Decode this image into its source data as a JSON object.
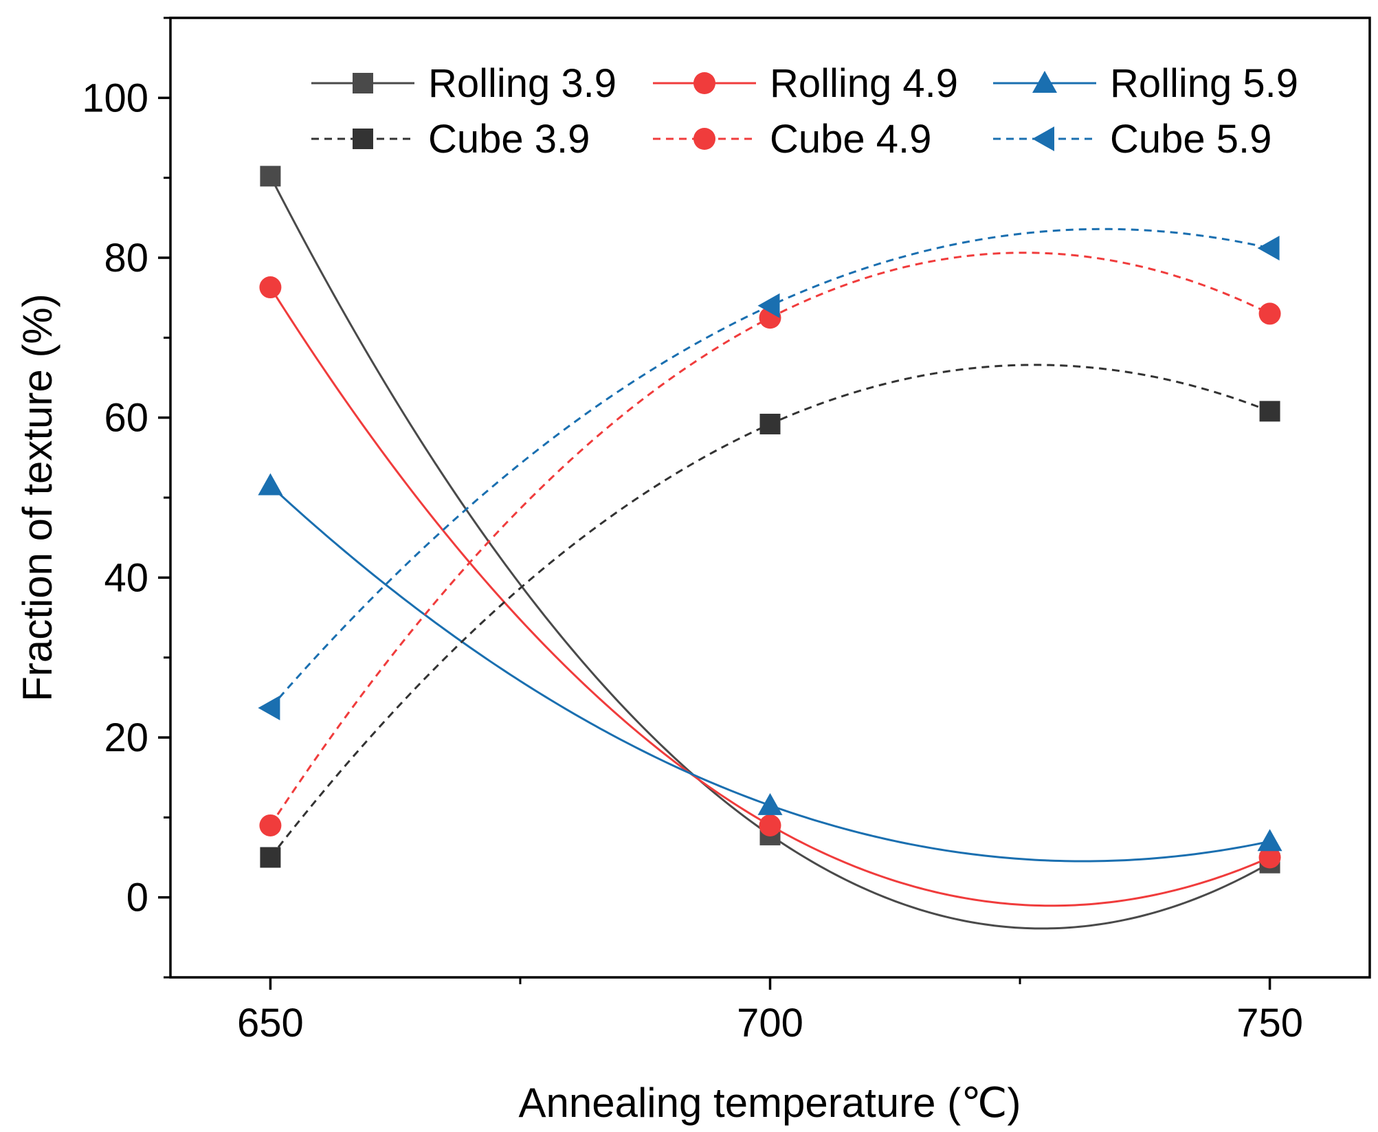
{
  "chart_data": {
    "type": "line",
    "title": "",
    "xlabel": "Annealing temperature (℃)",
    "ylabel": "Fraction of texture (%)",
    "xlim": [
      640,
      760
    ],
    "ylim": [
      -10,
      110
    ],
    "x_ticks": [
      650,
      700,
      750
    ],
    "x_minor_ticks": [
      675,
      725
    ],
    "y_ticks": [
      0,
      20,
      40,
      60,
      80,
      100
    ],
    "grid": false,
    "legend_position": "top",
    "x": [
      650,
      700,
      750
    ],
    "series": [
      {
        "name": "Rolling 3.9",
        "values": [
          90.2,
          7.8,
          4.3
        ],
        "color": "#4a4a4a",
        "marker": "square",
        "dash": "solid"
      },
      {
        "name": "Rolling 4.9",
        "values": [
          76.3,
          9.0,
          5.0
        ],
        "color": "#f03c3c",
        "marker": "circle",
        "dash": "solid"
      },
      {
        "name": "Rolling 5.9",
        "values": [
          51.5,
          11.5,
          7.0
        ],
        "color": "#1a6fb0",
        "marker": "triangle-up",
        "dash": "solid"
      },
      {
        "name": "Cube 3.9",
        "values": [
          5.0,
          59.2,
          60.8
        ],
        "color": "#333333",
        "marker": "square",
        "dash": "dashed"
      },
      {
        "name": "Cube 4.9",
        "values": [
          9.0,
          72.5,
          73.0
        ],
        "color": "#f03c3c",
        "marker": "circle",
        "dash": "dashed"
      },
      {
        "name": "Cube 5.9",
        "values": [
          23.7,
          74.0,
          81.2
        ],
        "color": "#1a6fb0",
        "marker": "triangle-left",
        "dash": "dashed"
      }
    ]
  }
}
